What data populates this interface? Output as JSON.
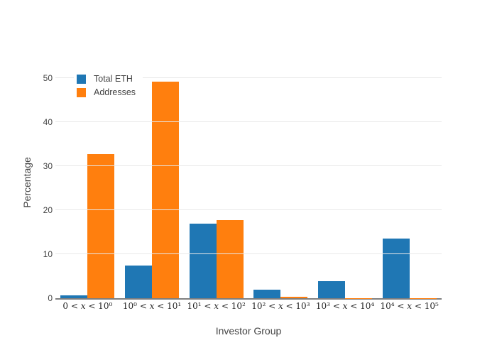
{
  "chart_data": {
    "type": "bar",
    "title": "",
    "xlabel": "Investor Group",
    "ylabel": "Percentage",
    "ylim": [
      0,
      50
    ],
    "yticks": [
      0,
      10,
      20,
      30,
      40,
      50
    ],
    "grid": true,
    "legend_position": "top-left-inside",
    "categories": [
      "0 < x < 10⁰",
      "10⁰ < x < 10¹",
      "10¹ < x < 10²",
      "10² < x < 10³",
      "10³ < x < 10⁴",
      "10⁴ < x < 10⁵"
    ],
    "series": [
      {
        "name": "Total ETH",
        "color": "#1f77b4",
        "values": [
          0.6,
          7.4,
          17.0,
          1.9,
          3.8,
          13.6
        ]
      },
      {
        "name": "Addresses",
        "color": "#ff7f0e",
        "values": [
          32.8,
          49.2,
          17.7,
          0.35,
          0.05,
          0.02
        ]
      }
    ]
  },
  "colors": {
    "background": "#ffffff",
    "axis_line": "#7f7f7f",
    "gridline": "#e8e8e8",
    "tick_text": "#444444",
    "math_tick_text": "#262626"
  }
}
